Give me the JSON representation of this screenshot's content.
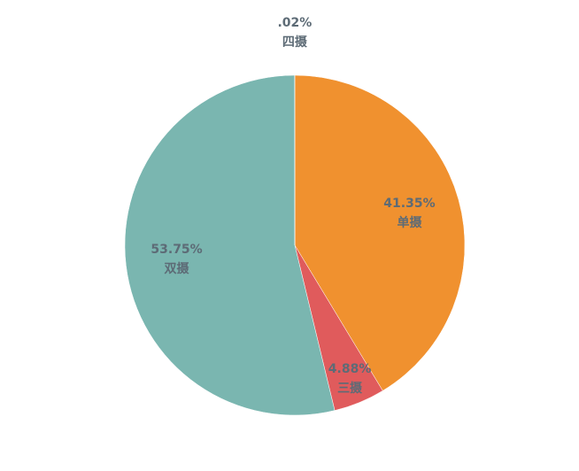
{
  "chart_data": {
    "type": "pie",
    "categories": [
      "单摄",
      "三摄",
      "双摄",
      "四摄"
    ],
    "values": [
      41.35,
      4.88,
      53.75,
      0.02
    ],
    "value_labels": [
      "41.35%",
      "4.88%",
      "53.75%",
      ".02%"
    ],
    "colors": [
      "#f0912f",
      "#e05b5c",
      "#7ab6b0",
      "#5b7fa6"
    ]
  }
}
